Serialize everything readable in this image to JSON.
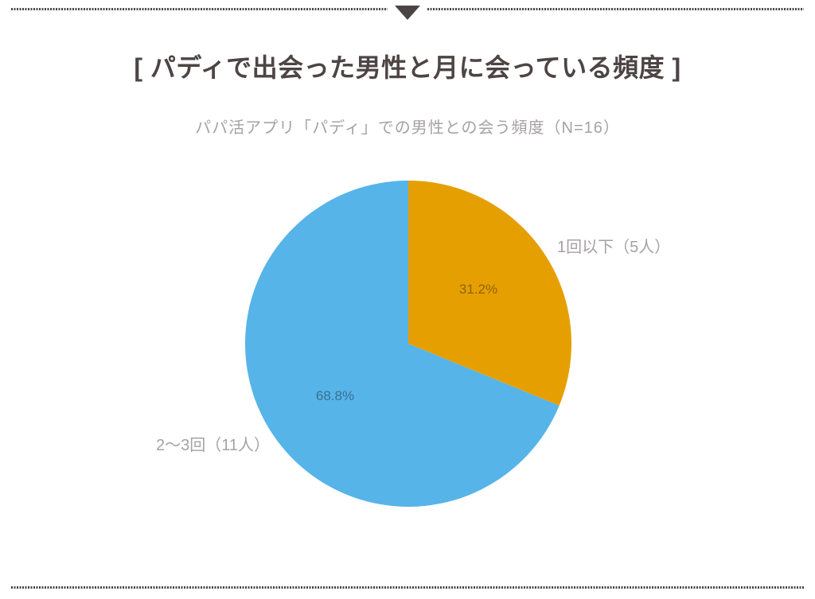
{
  "page": {
    "title": "[ パディで出会った男性と月に会っている頻度 ]",
    "subtitle": "パパ活アプリ「パディ」での男性との会う頻度（N=16）"
  },
  "chart_data": {
    "type": "pie",
    "title": "パパ活アプリ「パディ」での男性との会う頻度（N=16）",
    "total_n": 16,
    "start_angle_deg": 0,
    "direction": "clockwise",
    "legend_position": "outside-callout",
    "slices": [
      {
        "label": "1回以下（5人）",
        "category": "1回以下",
        "count": 5,
        "value": 31.2,
        "percent_label": "31.2%",
        "color": "#E69F00"
      },
      {
        "label": "2〜3回（11人）",
        "category": "2〜3回",
        "count": 11,
        "value": 68.8,
        "percent_label": "68.8%",
        "color": "#56B4E9"
      }
    ]
  },
  "theme": {
    "title_color": "#4d4543",
    "muted_text_color": "#a6a2a2",
    "border_dot_color": "#4b4444",
    "background": "#ffffff"
  }
}
